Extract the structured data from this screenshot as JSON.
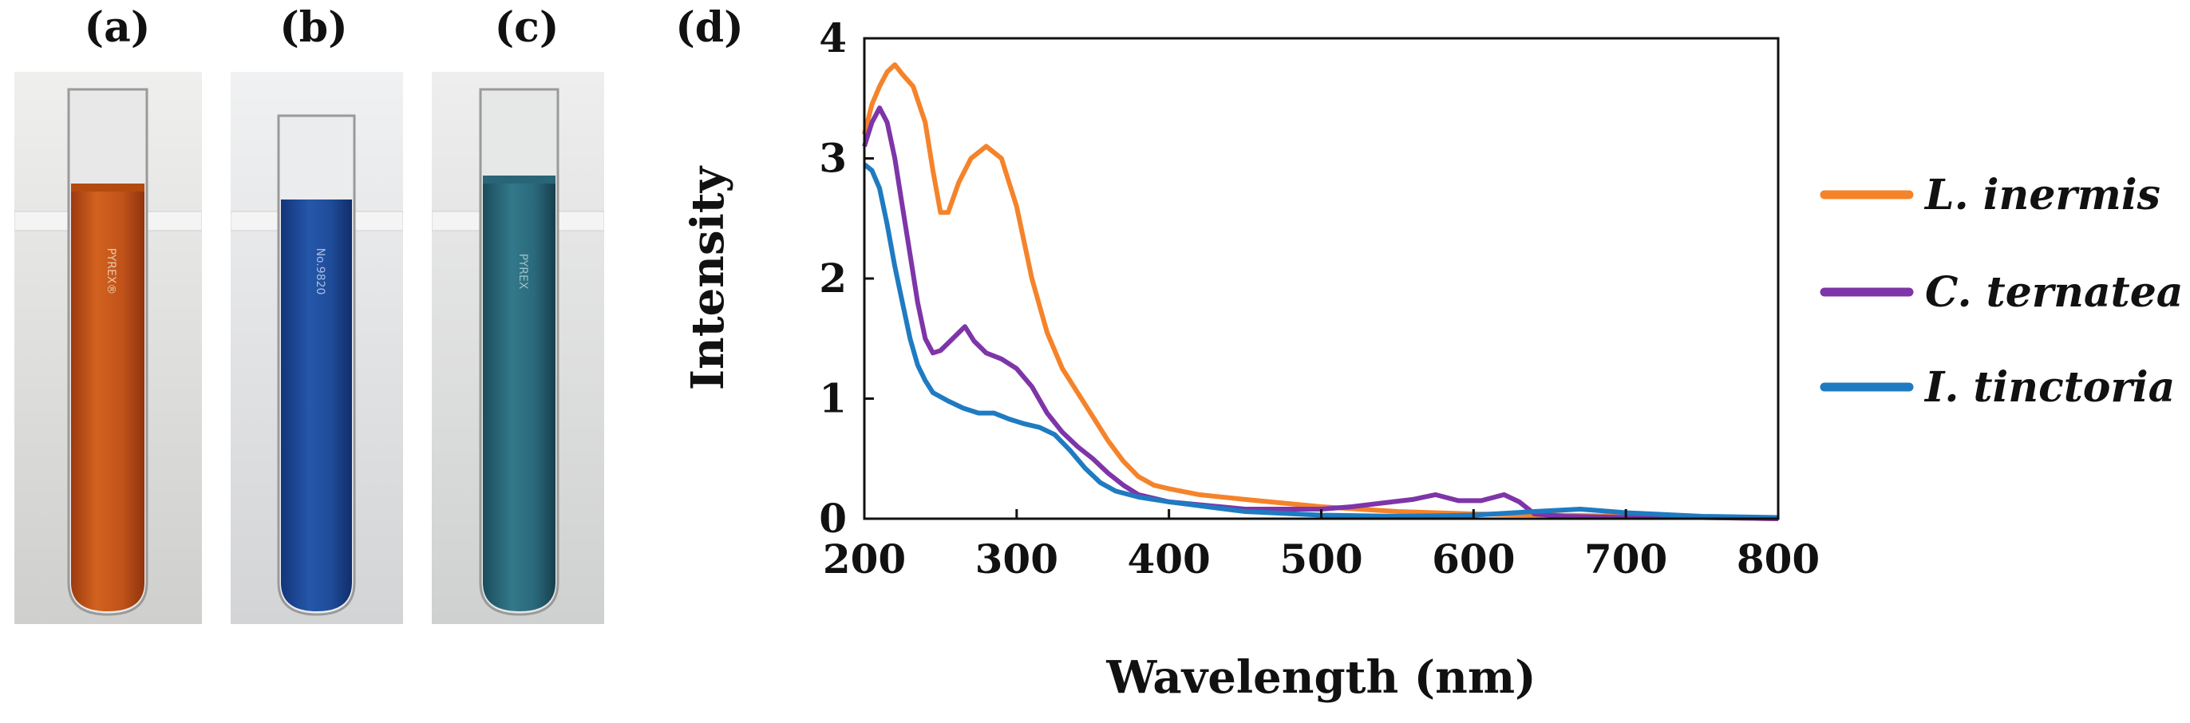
{
  "panels": {
    "a": {
      "label": "(a)"
    },
    "b": {
      "label": "(b)"
    },
    "c": {
      "label": "(c)"
    },
    "d": {
      "label": "(d)"
    }
  },
  "tubes": [
    {
      "label_text": "PYREX®",
      "liquid_color": "#c4531a",
      "bg": "#e4e4e2"
    },
    {
      "label_text": "No.9820",
      "liquid_color": "#1f4fa0",
      "bg": "#e6e7e9"
    },
    {
      "label_text": "PYREX",
      "liquid_color": "#2c6d80",
      "bg": "#e2e3e3"
    }
  ],
  "chart_data": {
    "type": "line",
    "xlabel": "Wavelength (nm)",
    "ylabel": "Intensity",
    "xlim": [
      200,
      800
    ],
    "ylim": [
      0,
      4
    ],
    "xticks": [
      200,
      300,
      400,
      500,
      600,
      700,
      800
    ],
    "yticks": [
      0,
      1,
      2,
      3,
      4
    ],
    "grid": false,
    "legend_position": "right",
    "series": [
      {
        "name": "L. inermis",
        "color": "#f5832a",
        "points": [
          [
            200,
            3.2
          ],
          [
            205,
            3.45
          ],
          [
            210,
            3.6
          ],
          [
            215,
            3.72
          ],
          [
            220,
            3.78
          ],
          [
            225,
            3.7
          ],
          [
            232,
            3.6
          ],
          [
            240,
            3.3
          ],
          [
            245,
            2.9
          ],
          [
            250,
            2.55
          ],
          [
            255,
            2.55
          ],
          [
            262,
            2.8
          ],
          [
            270,
            3.0
          ],
          [
            280,
            3.1
          ],
          [
            290,
            3.0
          ],
          [
            300,
            2.6
          ],
          [
            310,
            2.0
          ],
          [
            320,
            1.55
          ],
          [
            330,
            1.25
          ],
          [
            340,
            1.05
          ],
          [
            350,
            0.85
          ],
          [
            360,
            0.65
          ],
          [
            370,
            0.48
          ],
          [
            380,
            0.35
          ],
          [
            390,
            0.28
          ],
          [
            400,
            0.25
          ],
          [
            420,
            0.2
          ],
          [
            450,
            0.16
          ],
          [
            500,
            0.1
          ],
          [
            550,
            0.06
          ],
          [
            600,
            0.04
          ],
          [
            650,
            0.03
          ],
          [
            700,
            0.02
          ],
          [
            750,
            0.01
          ],
          [
            800,
            0.0
          ]
        ]
      },
      {
        "name": "C. ternatea",
        "color": "#7e35a8",
        "points": [
          [
            200,
            3.1
          ],
          [
            205,
            3.3
          ],
          [
            210,
            3.42
          ],
          [
            215,
            3.3
          ],
          [
            220,
            3.0
          ],
          [
            225,
            2.6
          ],
          [
            230,
            2.2
          ],
          [
            235,
            1.8
          ],
          [
            240,
            1.5
          ],
          [
            245,
            1.38
          ],
          [
            250,
            1.4
          ],
          [
            258,
            1.5
          ],
          [
            266,
            1.6
          ],
          [
            272,
            1.48
          ],
          [
            280,
            1.38
          ],
          [
            290,
            1.33
          ],
          [
            300,
            1.25
          ],
          [
            310,
            1.1
          ],
          [
            320,
            0.88
          ],
          [
            330,
            0.72
          ],
          [
            340,
            0.6
          ],
          [
            350,
            0.5
          ],
          [
            360,
            0.38
          ],
          [
            370,
            0.28
          ],
          [
            380,
            0.2
          ],
          [
            400,
            0.14
          ],
          [
            450,
            0.08
          ],
          [
            500,
            0.08
          ],
          [
            520,
            0.1
          ],
          [
            540,
            0.13
          ],
          [
            560,
            0.16
          ],
          [
            575,
            0.2
          ],
          [
            590,
            0.15
          ],
          [
            605,
            0.15
          ],
          [
            620,
            0.2
          ],
          [
            630,
            0.14
          ],
          [
            640,
            0.04
          ],
          [
            660,
            0.02
          ],
          [
            700,
            0.01
          ],
          [
            750,
            0.01
          ],
          [
            800,
            0.0
          ]
        ]
      },
      {
        "name": "I. tinctoria",
        "color": "#1f7bc1",
        "points": [
          [
            200,
            2.95
          ],
          [
            205,
            2.9
          ],
          [
            210,
            2.75
          ],
          [
            215,
            2.45
          ],
          [
            220,
            2.1
          ],
          [
            225,
            1.8
          ],
          [
            230,
            1.5
          ],
          [
            235,
            1.28
          ],
          [
            240,
            1.15
          ],
          [
            245,
            1.05
          ],
          [
            255,
            0.98
          ],
          [
            265,
            0.92
          ],
          [
            275,
            0.88
          ],
          [
            285,
            0.88
          ],
          [
            295,
            0.83
          ],
          [
            305,
            0.79
          ],
          [
            315,
            0.76
          ],
          [
            325,
            0.7
          ],
          [
            335,
            0.57
          ],
          [
            345,
            0.42
          ],
          [
            355,
            0.3
          ],
          [
            365,
            0.23
          ],
          [
            380,
            0.18
          ],
          [
            400,
            0.14
          ],
          [
            450,
            0.06
          ],
          [
            500,
            0.03
          ],
          [
            550,
            0.02
          ],
          [
            600,
            0.03
          ],
          [
            640,
            0.06
          ],
          [
            670,
            0.08
          ],
          [
            700,
            0.05
          ],
          [
            750,
            0.02
          ],
          [
            800,
            0.01
          ]
        ]
      }
    ]
  }
}
